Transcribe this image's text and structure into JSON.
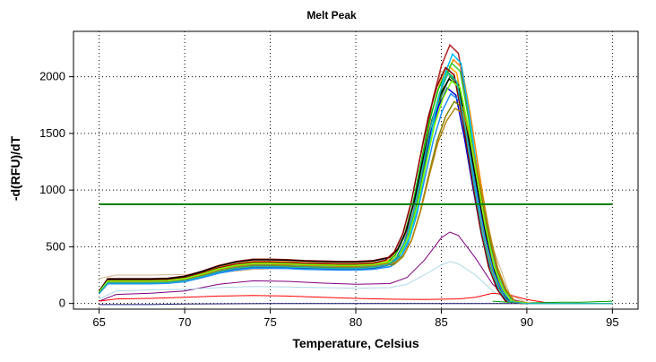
{
  "chart_data": {
    "type": "line",
    "title": "Melt Peak",
    "xlabel": "Temperature, Celsius",
    "ylabel": "-d(RFU)/dT",
    "xlim": [
      63.5,
      96.5
    ],
    "ylim": [
      -50,
      2400
    ],
    "xticks": [
      65,
      70,
      75,
      80,
      85,
      90,
      95
    ],
    "yticks": [
      0,
      500,
      1000,
      1500,
      2000
    ],
    "grid": true,
    "legend": "none",
    "threshold": {
      "value": 875,
      "x_range": [
        65,
        95
      ],
      "color": "#008000"
    },
    "series_template": {
      "x": [
        65,
        65.5,
        66,
        67,
        68,
        69,
        70,
        71,
        72,
        73,
        74,
        75,
        76,
        77,
        78,
        79,
        80,
        81,
        82,
        82.5,
        83,
        83.5,
        84,
        84.5,
        85,
        85.5,
        86,
        86.5,
        87,
        87.5,
        88,
        88.5,
        89,
        90,
        92,
        95
      ],
      "shape": [
        0.28,
        0.56,
        0.56,
        0.56,
        0.56,
        0.57,
        0.62,
        0.73,
        0.86,
        0.95,
        1.0,
        1.0,
        0.99,
        0.97,
        0.96,
        0.95,
        0.95,
        0.97,
        1.05,
        1.25,
        1.7,
        2.5,
        3.6,
        4.7,
        5.5,
        6.0,
        5.8,
        4.6,
        3.2,
        1.9,
        0.9,
        0.35,
        0.06,
        0.0,
        0.0,
        0.0
      ]
    },
    "series": [
      {
        "color": "#b22222",
        "peak": 2280,
        "plateau": 390,
        "shift": 0.0
      },
      {
        "color": "#ff8c00",
        "peak": 2150,
        "plateau": 370,
        "shift": 0.2
      },
      {
        "color": "#ffa500",
        "peak": 2100,
        "plateau": 360,
        "shift": -0.1
      },
      {
        "color": "#32cd32",
        "peak": 2120,
        "plateau": 350,
        "shift": 0.1
      },
      {
        "color": "#00c000",
        "peak": 2050,
        "plateau": 340,
        "shift": -0.2
      },
      {
        "color": "#228b22",
        "peak": 2000,
        "plateau": 330,
        "shift": 0.0
      },
      {
        "color": "#000000",
        "peak": 1980,
        "plateau": 385,
        "shift": -0.05
      },
      {
        "color": "#0000cd",
        "peak": 1900,
        "plateau": 320,
        "shift": -0.15
      },
      {
        "color": "#1e90ff",
        "peak": 1850,
        "plateau": 310,
        "shift": 0.05
      },
      {
        "color": "#00bfff",
        "peak": 2200,
        "plateau": 335,
        "shift": 0.15
      },
      {
        "color": "#808000",
        "peak": 1780,
        "plateau": 330,
        "shift": 0.25
      },
      {
        "color": "#b8860b",
        "peak": 1720,
        "plateau": 345,
        "shift": 0.3
      },
      {
        "color": "#8b0000",
        "peak": 2080,
        "plateau": 365,
        "shift": -0.25
      },
      {
        "color": "#7cfc00",
        "peak": 1960,
        "plateau": 355,
        "shift": 0.1
      },
      {
        "color": "#20b2aa",
        "peak": 2030,
        "plateau": 325,
        "shift": -0.1
      }
    ],
    "extra_curves": [
      {
        "color": "#800080",
        "x": [
          65,
          66,
          68,
          70,
          72,
          74,
          76,
          78,
          80,
          82,
          83,
          84,
          85,
          85.5,
          86,
          87,
          88,
          89,
          90,
          92,
          95
        ],
        "y": [
          20,
          80,
          90,
          110,
          170,
          200,
          195,
          180,
          170,
          175,
          230,
          380,
          580,
          630,
          600,
          400,
          170,
          40,
          5,
          0,
          0
        ]
      },
      {
        "color": "#add8e6",
        "x": [
          65,
          66,
          68,
          70,
          72,
          74,
          76,
          78,
          80,
          82,
          83,
          84,
          85,
          85.5,
          86,
          87,
          88,
          89,
          90,
          92,
          95
        ],
        "y": [
          40,
          110,
          120,
          125,
          140,
          150,
          145,
          140,
          135,
          140,
          170,
          250,
          340,
          370,
          350,
          250,
          110,
          25,
          3,
          0,
          0
        ]
      },
      {
        "color": "#d2b48c",
        "x": [
          65,
          66,
          68,
          70,
          72,
          74,
          76,
          78,
          80,
          81,
          82,
          83,
          84,
          85,
          86,
          87,
          88,
          89,
          90,
          92,
          95
        ],
        "y": [
          220,
          250,
          250,
          255,
          270,
          300,
          310,
          305,
          300,
          305,
          350,
          700,
          1500,
          2050,
          1950,
          1300,
          500,
          80,
          5,
          0,
          0
        ]
      },
      {
        "color": "#ff0000",
        "x": [
          65,
          66,
          68,
          70,
          72,
          74,
          76,
          78,
          80,
          82,
          84,
          86,
          87,
          88,
          89,
          90,
          91,
          92,
          95
        ],
        "y": [
          20,
          40,
          45,
          55,
          65,
          70,
          65,
          55,
          45,
          38,
          35,
          40,
          55,
          90,
          75,
          35,
          10,
          0,
          0
        ]
      },
      {
        "color": "#191970",
        "x": [
          65,
          68,
          70,
          75,
          80,
          85,
          88,
          90,
          95
        ],
        "y": [
          -10,
          -10,
          -5,
          0,
          0,
          0,
          0,
          0,
          0
        ]
      },
      {
        "color": "#00a000",
        "x": [
          88,
          89,
          90,
          91,
          92,
          93,
          94,
          95
        ],
        "y": [
          20,
          10,
          5,
          8,
          12,
          10,
          15,
          20
        ]
      }
    ]
  }
}
